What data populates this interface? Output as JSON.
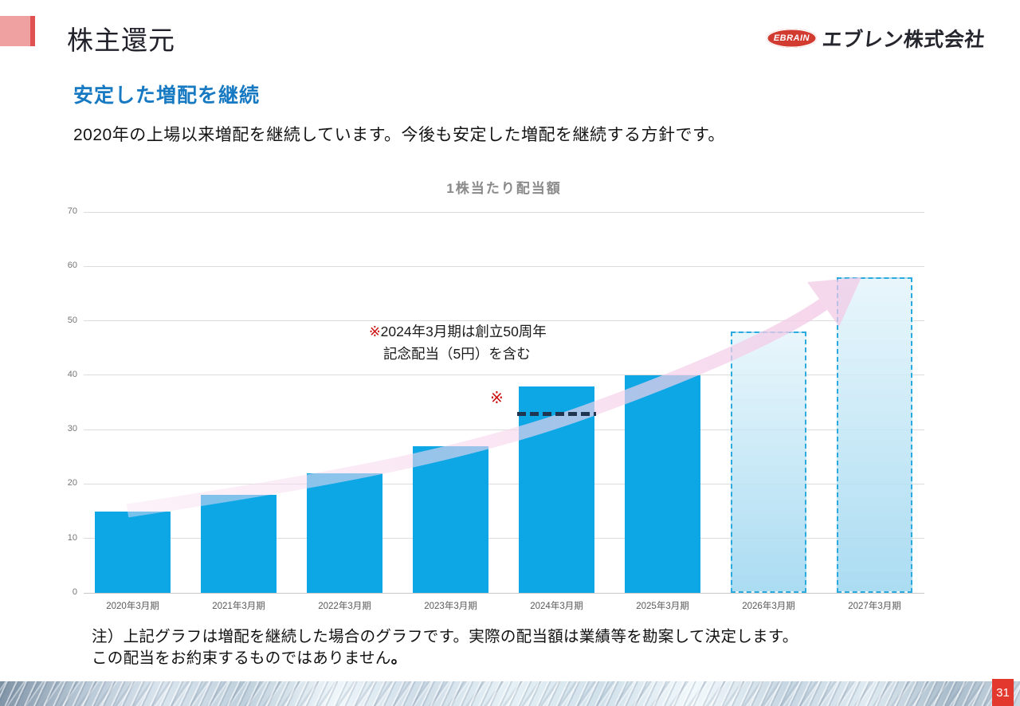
{
  "slide": {
    "title": "株主還元",
    "logo_badge": "EBRAIN",
    "logo_company": "エブレン株式会社",
    "heading": "安定した増配を継続",
    "body": "2020年の上場以来増配を継続しています。今後も安定した増配を継続する方針です。",
    "note_line1": "注）上記グラフは増配を継続した場合のグラフです。実際の配当額は業績等を勘案して決定します。",
    "note_line2": "この配当をお約束するものではありません",
    "note_line2_period": "。",
    "page_number": "31"
  },
  "chart_data": {
    "type": "bar",
    "title": "1株当たり配当額",
    "categories": [
      "2020年3月期",
      "2021年3月期",
      "2022年3月期",
      "2023年3月期",
      "2024年3月期",
      "2025年3月期",
      "2026年3月期",
      "2027年3月期"
    ],
    "values": [
      15,
      18,
      22,
      27,
      38,
      40,
      48,
      58
    ],
    "projected_from_index": 6,
    "ylim": [
      0,
      70
    ],
    "ytick_step": 10,
    "grid": true,
    "legend": "none",
    "annotation": {
      "marker": "※",
      "text_line1": "2024年3月期は創立50周年",
      "text_line2": "記念配当（5円）を含む",
      "target_index": 4,
      "base_value_line": 33
    },
    "colors": {
      "bar": "#0ea7e6",
      "projected_border": "#2baadf",
      "dashed_line": "#1f3550",
      "marker_red": "#cc1111",
      "trend_arrow": "#f3c9e6",
      "grid": "#dcdcdc",
      "heading_blue": "#1679c2",
      "accent_pink": "#efa0a0",
      "accent_red": "#e05252",
      "page_badge_red": "#e2382d"
    }
  }
}
